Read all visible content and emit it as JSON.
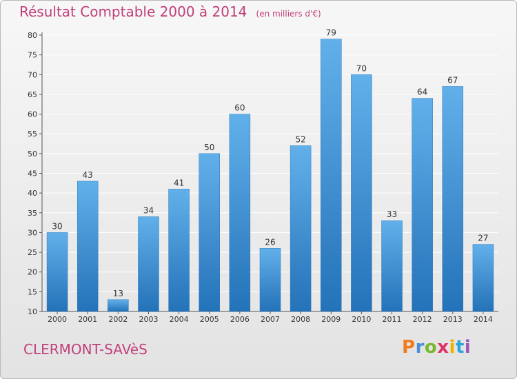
{
  "title": "Résultat Comptable 2000 à 2014",
  "subtitle": "(en milliers d'€)",
  "commune": "CLERMONT-SAVèS",
  "logo": {
    "letters": [
      "P",
      "r",
      "o",
      "x",
      "i",
      "t",
      "i"
    ],
    "colors": [
      "#f07c1d",
      "#4a90d9",
      "#7bb832",
      "#e0306a",
      "#f0b000",
      "#2fa4d8",
      "#9b59b6"
    ]
  },
  "colors": {
    "bar": "#3b93d8",
    "bar_light": "#62b0ea",
    "bar_dark": "#2472b8",
    "title": "#c0407a"
  },
  "chart_data": {
    "type": "bar",
    "categories": [
      "2000",
      "2001",
      "2002",
      "2003",
      "2004",
      "2005",
      "2006",
      "2007",
      "2008",
      "2009",
      "2010",
      "2011",
      "2012",
      "2013",
      "2014"
    ],
    "values": [
      30,
      43,
      13,
      34,
      41,
      50,
      60,
      26,
      52,
      79,
      70,
      33,
      64,
      67,
      27
    ],
    "yticks": [
      10,
      15,
      20,
      25,
      30,
      35,
      40,
      45,
      50,
      55,
      60,
      65,
      70,
      75,
      80
    ],
    "ylim": [
      10,
      80
    ],
    "grid": true
  }
}
